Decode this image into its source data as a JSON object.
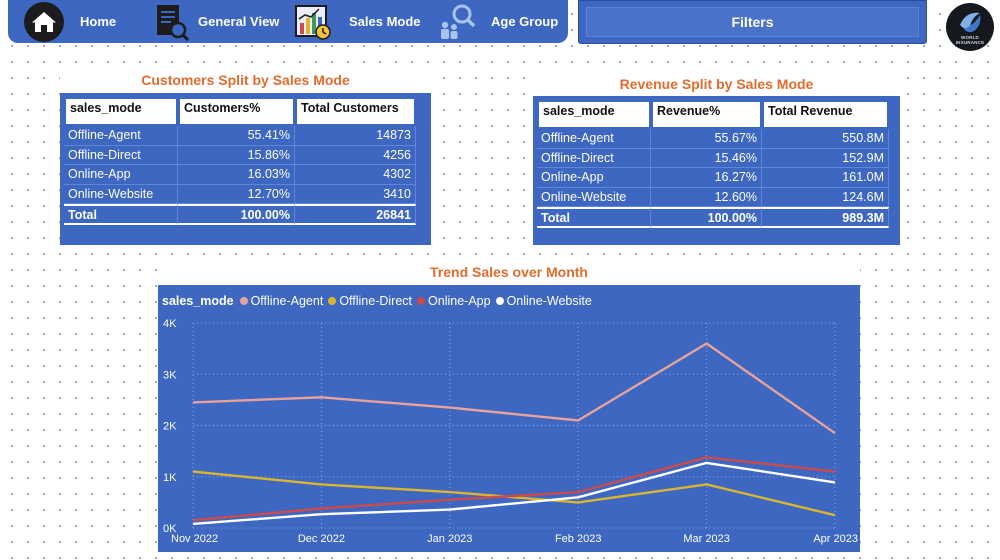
{
  "nav": {
    "items": [
      {
        "label": "Home",
        "icon": "home-icon"
      },
      {
        "label": "General View",
        "icon": "document-search-icon"
      },
      {
        "label": "Sales Mode",
        "icon": "chart-clock-icon"
      },
      {
        "label": "Age Group",
        "icon": "people-search-icon"
      }
    ],
    "filters_label": "Filters",
    "logo": {
      "name": "world-insurance-logo",
      "line1": "WORLD",
      "line2": "INSURANCE"
    }
  },
  "customers_split": {
    "title": "Customers Split by Sales Mode",
    "headers": [
      "sales_mode",
      "Customers%",
      "Total Customers"
    ],
    "rows": [
      [
        "Offline-Agent",
        "55.41%",
        "14873"
      ],
      [
        "Offline-Direct",
        "15.86%",
        "4256"
      ],
      [
        "Online-App",
        "16.03%",
        "4302"
      ],
      [
        "Online-Website",
        "12.70%",
        "3410"
      ]
    ],
    "total": [
      "Total",
      "100.00%",
      "26841"
    ]
  },
  "revenue_split": {
    "title": "Revenue Split by Sales Mode",
    "headers": [
      "sales_mode",
      "Revenue%",
      "Total Revenue"
    ],
    "rows": [
      [
        "Offline-Agent",
        "55.67%",
        "550.8M"
      ],
      [
        "Offline-Direct",
        "15.46%",
        "152.9M"
      ],
      [
        "Online-App",
        "16.27%",
        "161.0M"
      ],
      [
        "Online-Website",
        "12.60%",
        "124.6M"
      ]
    ],
    "total": [
      "Total",
      "100.00%",
      "989.3M"
    ]
  },
  "colors": {
    "panel_blue": "#3d67c0",
    "title_orange": "#e06c2e",
    "offline_agent": "#e8a29c",
    "offline_direct": "#d9b530",
    "online_app": "#cd4a4a",
    "online_website": "#ffffff"
  },
  "chart_data": {
    "type": "line",
    "title": "Trend Sales over Month",
    "legend_title": "sales_mode",
    "legend_position": "top-left",
    "grid": true,
    "categories": [
      "Nov 2022",
      "Dec 2022",
      "Jan 2023",
      "Feb 2023",
      "Mar 2023",
      "Apr 2023"
    ],
    "yticks": [
      "0K",
      "1K",
      "2K",
      "3K",
      "4K"
    ],
    "ylim": [
      0,
      4000
    ],
    "series": [
      {
        "name": "Offline-Agent",
        "color": "#e8a29c",
        "values": [
          2450,
          2550,
          2350,
          2100,
          3600,
          1850
        ]
      },
      {
        "name": "Offline-Direct",
        "color": "#d9b530",
        "values": [
          1100,
          850,
          700,
          500,
          850,
          250
        ]
      },
      {
        "name": "Online-App",
        "color": "#cd4a4a",
        "values": [
          150,
          380,
          550,
          700,
          1380,
          1100
        ]
      },
      {
        "name": "Online-Website",
        "color": "#ffffff",
        "values": [
          80,
          270,
          360,
          600,
          1270,
          890
        ]
      }
    ]
  }
}
